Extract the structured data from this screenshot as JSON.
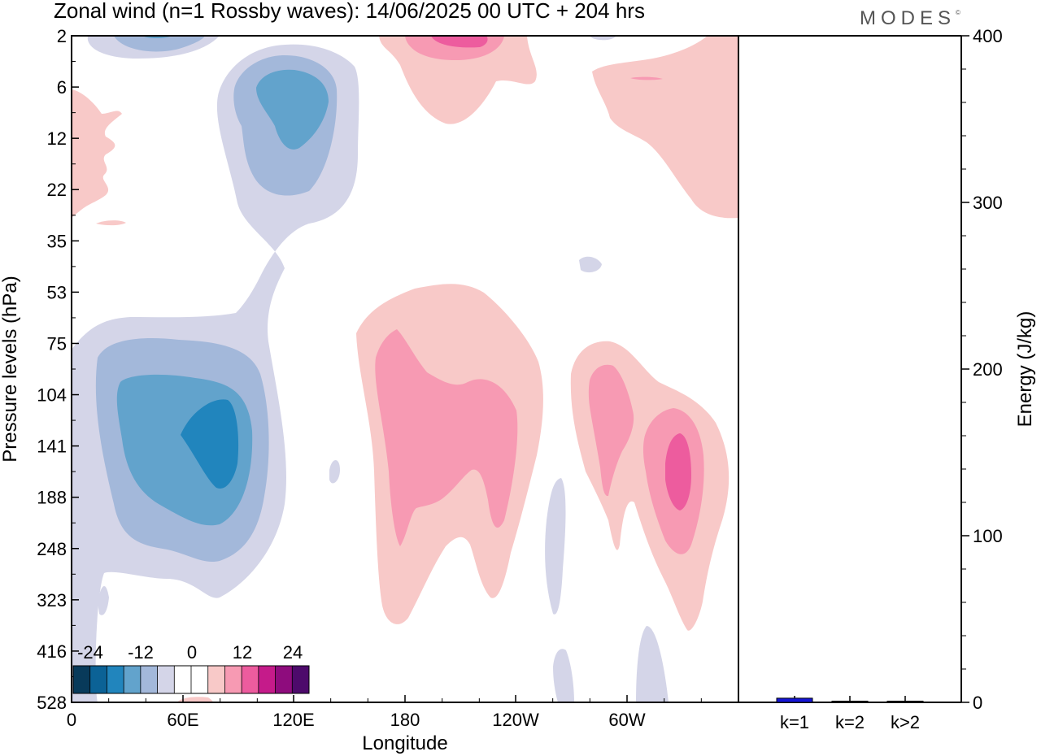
{
  "header": {
    "title": "Zonal wind (n=1 Rossby waves):  14/06/2025  00 UTC  + 204 hrs",
    "logo_text": "MODES",
    "logo_mark": "©"
  },
  "chart_data": [
    {
      "type": "heatmap",
      "title": "Zonal wind (n=1 Rossby waves):  14/06/2025  00 UTC  + 204 hrs",
      "xlabel": "Longitude",
      "ylabel": "Pressure levels (hPa)",
      "x_ticks": [
        "0",
        "60E",
        "120E",
        "180",
        "120W",
        "60W"
      ],
      "y_ticks": [
        "2",
        "6",
        "12",
        "22",
        "35",
        "53",
        "75",
        "104",
        "141",
        "188",
        "248",
        "323",
        "416",
        "528"
      ],
      "colorbar": {
        "tick_labels": [
          "-24",
          "-12",
          "0",
          "12",
          "24"
        ],
        "levels": [
          -30,
          -25,
          -20,
          -15,
          -10,
          -5,
          0,
          5,
          10,
          15,
          20,
          25,
          30
        ],
        "colors": [
          "#083a5a",
          "#0b6296",
          "#2185bd",
          "#62a3cc",
          "#a3b8da",
          "#d4d5e8",
          "#ffffff",
          "#ffffff",
          "#f8c9c8",
          "#f79ab3",
          "#ed5c9e",
          "#c51b8a",
          "#8e0c7d",
          "#4d0a6b"
        ]
      },
      "regions": [
        {
          "feature": "upper-level negative cell near 60E",
          "longitude": 45,
          "level_hPa": 2.5,
          "value": -15
        },
        {
          "feature": "upper-level negative cell near 120E",
          "longitude": 115,
          "level_hPa": 8,
          "value": -15
        },
        {
          "feature": "lower-level negative cell near 60E",
          "longitude": 70,
          "level_hPa": 135,
          "value": -20
        },
        {
          "feature": "upper-level positive cell near 165W",
          "longitude": 200,
          "level_hPa": 2.5,
          "value": 20
        },
        {
          "feature": "lower-level positive cell near 180",
          "longitude": 200,
          "level_hPa": 130,
          "value": 15
        },
        {
          "feature": "lower-level positive cell near 20W",
          "longitude": 325,
          "level_hPa": 150,
          "value": 20
        },
        {
          "feature": "upper-level positive region near 40W",
          "longitude": 320,
          "level_hPa": 6,
          "value": 8
        }
      ]
    },
    {
      "type": "bar",
      "ylabel": "Energy (J/kg)",
      "categories": [
        "k=1",
        "k=2",
        "k>2"
      ],
      "values": [
        2.5,
        0.7,
        0.5
      ],
      "ylim": [
        0,
        400
      ],
      "y_ticks": [
        "0",
        "100",
        "200",
        "300",
        "400"
      ],
      "bar_colors": [
        "#1515d6",
        "#1a1a1a",
        "#1a1a1a"
      ]
    }
  ]
}
